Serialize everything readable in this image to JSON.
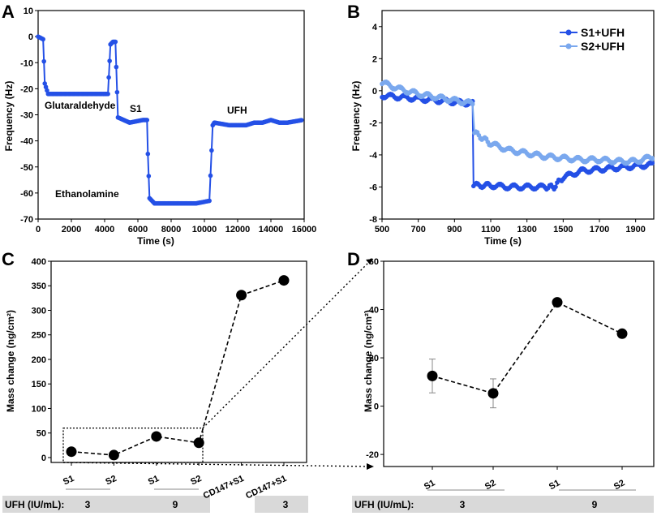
{
  "colors": {
    "s1": "#2450e6",
    "s2": "#7aa8ee",
    "black": "#000000",
    "gray_band": "#d9d9d9"
  },
  "chart_data": [
    {
      "panel": "A",
      "type": "line",
      "xlabel": "Time (s)",
      "ylabel": "Frequency (Hz)",
      "xlim": [
        0,
        16000
      ],
      "ylim": [
        -70,
        10
      ],
      "xticks": [
        0,
        2000,
        4000,
        6000,
        8000,
        10000,
        12000,
        14000,
        16000
      ],
      "yticks": [
        10,
        0,
        -10,
        -20,
        -30,
        -40,
        -50,
        -60,
        -70
      ],
      "annotations": [
        "Glutaraldehyde",
        "S1",
        "Ethanolamine",
        "UFH"
      ],
      "series": [
        {
          "name": "Frequency",
          "x": [
            0,
            300,
            400,
            600,
            2000,
            4200,
            4350,
            4500,
            4650,
            4800,
            5500,
            6300,
            6550,
            6600,
            6700,
            7000,
            8000,
            9500,
            10300,
            10500,
            10600,
            11500,
            12000,
            12500,
            13000,
            13500,
            14000,
            14500,
            15000,
            15900
          ],
          "y": [
            0,
            -1,
            -18,
            -22,
            -22,
            -22,
            -3,
            -2,
            -2,
            -31,
            -33,
            -32,
            -32,
            -45,
            -62,
            -64,
            -64,
            -64,
            -63,
            -34,
            -33,
            -34,
            -34,
            -34,
            -33,
            -33,
            -32,
            -33,
            -33,
            -32
          ]
        }
      ]
    },
    {
      "panel": "B",
      "type": "line",
      "xlabel": "Time (s)",
      "ylabel": "Frequency (Hz)",
      "xlim": [
        500,
        2000
      ],
      "ylim": [
        -8,
        5
      ],
      "xticks": [
        500,
        700,
        900,
        1100,
        1300,
        1500,
        1700,
        1900
      ],
      "yticks": [
        4,
        2,
        0,
        -2,
        -4,
        -6,
        -8
      ],
      "legend": [
        "S1+UFH",
        "S2+UFH"
      ],
      "series": [
        {
          "name": "S1+UFH",
          "x": [
            500,
            600,
            700,
            800,
            900,
            1000,
            1005,
            1100,
            1200,
            1300,
            1400,
            1450,
            1500,
            1600,
            1700,
            1800,
            1900,
            2000
          ],
          "y": [
            -0.3,
            -0.4,
            -0.5,
            -0.6,
            -0.7,
            -0.8,
            -5.9,
            -5.9,
            -6.0,
            -6.0,
            -6.0,
            -6.0,
            -5.4,
            -5.0,
            -4.9,
            -4.8,
            -4.7,
            -4.6
          ]
        },
        {
          "name": "S2+UFH",
          "x": [
            500,
            600,
            700,
            800,
            900,
            1000,
            1010,
            1100,
            1200,
            1300,
            1400,
            1500,
            1600,
            1700,
            1800,
            1900,
            2000
          ],
          "y": [
            0.5,
            0.1,
            -0.2,
            -0.4,
            -0.6,
            -0.8,
            -2.6,
            -3.3,
            -3.7,
            -3.9,
            -4.1,
            -4.2,
            -4.3,
            -4.3,
            -4.4,
            -4.4,
            -4.1
          ]
        }
      ]
    },
    {
      "panel": "C",
      "type": "scatter",
      "ylabel": "Mass change (ng/cm²)",
      "ylim": [
        -10,
        400
      ],
      "yticks": [
        400,
        350,
        300,
        250,
        200,
        150,
        100,
        50,
        0
      ],
      "categories": [
        "S1",
        "S2",
        "S1",
        "S2",
        "CD147+S1",
        "CD147+S1"
      ],
      "values": [
        12,
        5,
        43,
        30,
        331,
        361
      ],
      "group_label": "UFH (IU/mL):",
      "groups": [
        "3",
        "9",
        "3"
      ]
    },
    {
      "panel": "D",
      "type": "scatter",
      "ylabel": "Mass change (ng/cm²)",
      "ylim": [
        -25,
        60
      ],
      "yticks": [
        60,
        40,
        20,
        0,
        -20
      ],
      "categories": [
        "S1",
        "S2",
        "S1",
        "S2"
      ],
      "values": [
        12.5,
        5.3,
        43,
        30
      ],
      "errors": [
        7,
        6,
        0,
        0
      ],
      "group_label": "UFH (IU/mL):",
      "groups": [
        "3",
        "9"
      ]
    }
  ]
}
